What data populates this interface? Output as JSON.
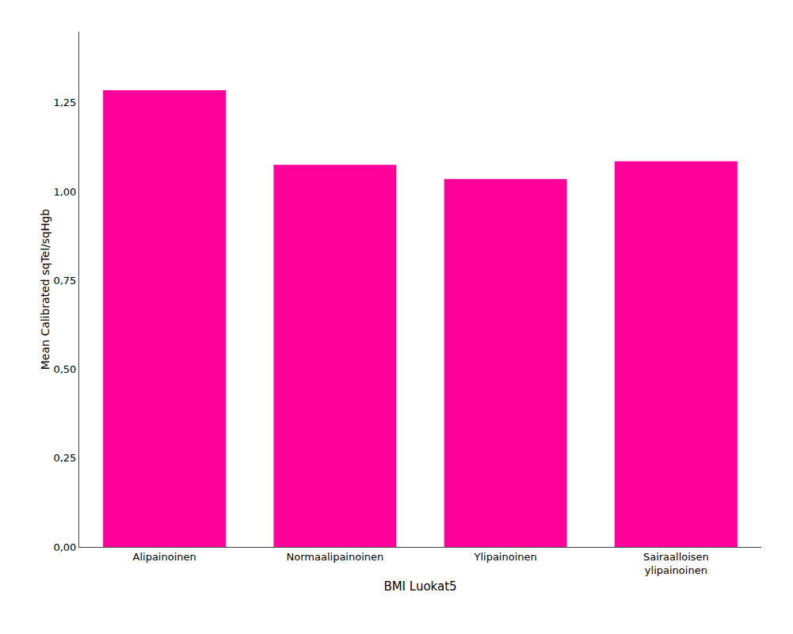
{
  "chart_data": {
    "type": "bar",
    "categories": [
      "Alipainoinen",
      "Normaalipainoinen",
      "Ylipainoinen",
      "Sairaalloisen\nylipainoinen"
    ],
    "values": [
      1.285,
      1.075,
      1.035,
      1.085
    ],
    "color": "#FF0099",
    "xlabel": "BMI Luokat5",
    "ylabel": "Mean Calibrated sqTel/sqHgb",
    "ylim": [
      0,
      1.45
    ],
    "yticks": [
      {
        "value": 0.0,
        "label": "0,00"
      },
      {
        "value": 0.25,
        "label": "0,25"
      },
      {
        "value": 0.5,
        "label": "0,50"
      },
      {
        "value": 0.75,
        "label": "0,75"
      },
      {
        "value": 1.0,
        "label": "1,00"
      },
      {
        "value": 1.25,
        "label": "1,25"
      }
    ],
    "grid": false
  }
}
